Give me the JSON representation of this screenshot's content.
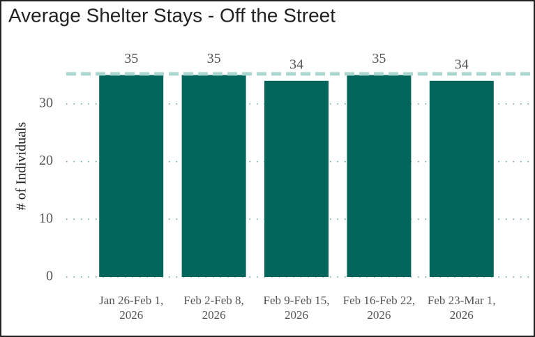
{
  "chart_data": {
    "type": "bar",
    "title": "Average Shelter Stays - Off the Street",
    "y_label": "# of Individuals",
    "categories": [
      "Jan 26-Feb 1, 2026",
      "Feb 2-Feb 8, 2026",
      "Feb 9-Feb 15, 2026",
      "Feb 16-Feb 22, 2026",
      "Feb 23-Mar 1, 2026"
    ],
    "values": [
      35,
      35,
      34,
      35,
      34
    ],
    "color": "#03665d",
    "reference_line": 35.2,
    "reference_color": "#a9d6cf",
    "ylim": [
      0,
      37
    ],
    "yticks": [
      0,
      10,
      20,
      30
    ],
    "grid": true
  }
}
